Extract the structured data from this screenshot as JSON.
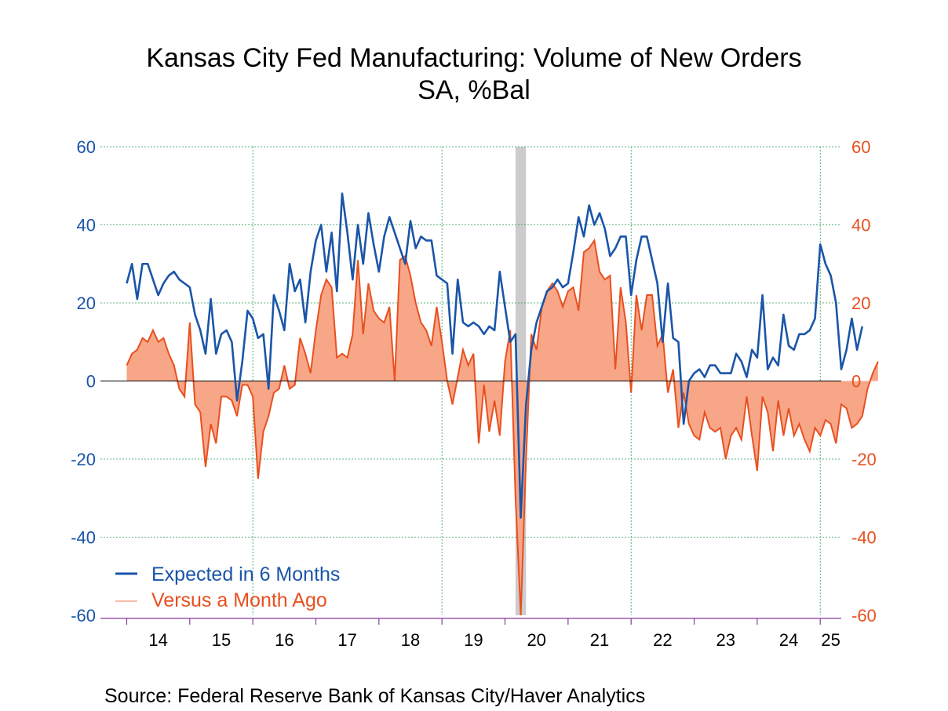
{
  "chart_data": {
    "type": "line",
    "title": "Kansas City Fed Manufacturing: Volume of New Orders",
    "subtitle": "SA, %Bal",
    "source": "Source:  Federal Reserve Bank of Kansas City/Haver Analytics",
    "x_tick_labels": [
      "14",
      "15",
      "16",
      "17",
      "18",
      "19",
      "20",
      "21",
      "22",
      "23",
      "24",
      "25"
    ],
    "y_left_ticks": [
      "60",
      "40",
      "20",
      "0",
      "-20",
      "-40",
      "-60"
    ],
    "y_right_ticks": [
      "60",
      "40",
      "20",
      "0",
      "-20",
      "-40",
      "-60"
    ],
    "ylim": [
      -60,
      60
    ],
    "xlim": [
      2013.5833,
      2025.3333
    ],
    "grid": true,
    "legend_position": "bottom-left",
    "recession_band": [
      2020.1667,
      2020.3333
    ],
    "colors": {
      "expected": "#1a55a8",
      "versus_line": "#e8501f",
      "versus_fill": "#f7a688",
      "left_axis": "#1a55a8",
      "right_axis": "#e8501f",
      "grid": "#2e9b57",
      "band": "#cccccc",
      "x_axis": "#8a3a9a"
    },
    "x_start": "2014-01",
    "series": [
      {
        "name": "Expected in 6 Months",
        "style": "line",
        "values": [
          25,
          30,
          21,
          30,
          30,
          26,
          22,
          25,
          27,
          28,
          26,
          25,
          24,
          17,
          13,
          7,
          21,
          7,
          12,
          13,
          10,
          -5,
          5,
          18,
          16,
          11,
          12,
          -2,
          22,
          18,
          13,
          30,
          23,
          26,
          15,
          28,
          36,
          40,
          28,
          38,
          23,
          48,
          38,
          26,
          40,
          30,
          43,
          35,
          28,
          37,
          42,
          38,
          34,
          30,
          41,
          34,
          37,
          36,
          36,
          27,
          26,
          25,
          7,
          26,
          15,
          14,
          15,
          14,
          12,
          14,
          13,
          28,
          19,
          10,
          12,
          -35,
          -6,
          8,
          15,
          19,
          23,
          24,
          26,
          24,
          25,
          33,
          42,
          37,
          45,
          40,
          43,
          39,
          32,
          34,
          37,
          37,
          22,
          31,
          37,
          37,
          31,
          25,
          10,
          25,
          11,
          10,
          -11,
          0,
          2,
          3,
          1,
          4,
          4,
          2,
          2,
          2,
          7,
          5,
          1,
          8,
          6,
          22,
          3,
          6,
          4,
          17,
          9,
          8,
          12,
          12,
          13,
          16,
          35,
          30,
          27,
          20,
          3,
          8,
          16,
          8,
          14
        ]
      },
      {
        "name": "Versus a Month Ago",
        "style": "filled-area",
        "values": [
          4,
          7,
          8,
          11,
          10,
          13,
          10,
          11,
          7,
          4,
          -2,
          -4,
          15,
          -6,
          -8,
          -22,
          -11,
          -16,
          -4,
          -4,
          -5,
          -9,
          -1,
          -1,
          -4,
          -25,
          -13,
          -9,
          -3,
          -2,
          4,
          -2,
          -1,
          11,
          7,
          2,
          13,
          22,
          26,
          24,
          6,
          7,
          6,
          12,
          31,
          12,
          25,
          18,
          16,
          15,
          19,
          0,
          31,
          32,
          27,
          20,
          15,
          13,
          9,
          19,
          10,
          0,
          -6,
          1,
          8,
          4,
          7,
          -16,
          -1,
          -13,
          -5,
          -14,
          5,
          13,
          -30,
          -60,
          -20,
          12,
          8,
          19,
          23,
          25,
          23,
          19,
          23,
          24,
          18,
          33,
          34,
          36,
          28,
          26,
          27,
          3,
          24,
          15,
          -3,
          22,
          13,
          22,
          22,
          9,
          12,
          -3,
          3,
          -12,
          -3,
          -11,
          -14,
          -15,
          -8,
          -12,
          -13,
          -12,
          -20,
          -14,
          -12,
          -15,
          -4,
          -14,
          -23,
          -4,
          -8,
          -18,
          -5,
          -14,
          -7,
          -14,
          -11,
          -15,
          -18,
          -12,
          -14,
          -10,
          -11,
          -16,
          -6,
          -7,
          -12,
          -11,
          -9,
          -2,
          2,
          5
        ]
      }
    ]
  }
}
